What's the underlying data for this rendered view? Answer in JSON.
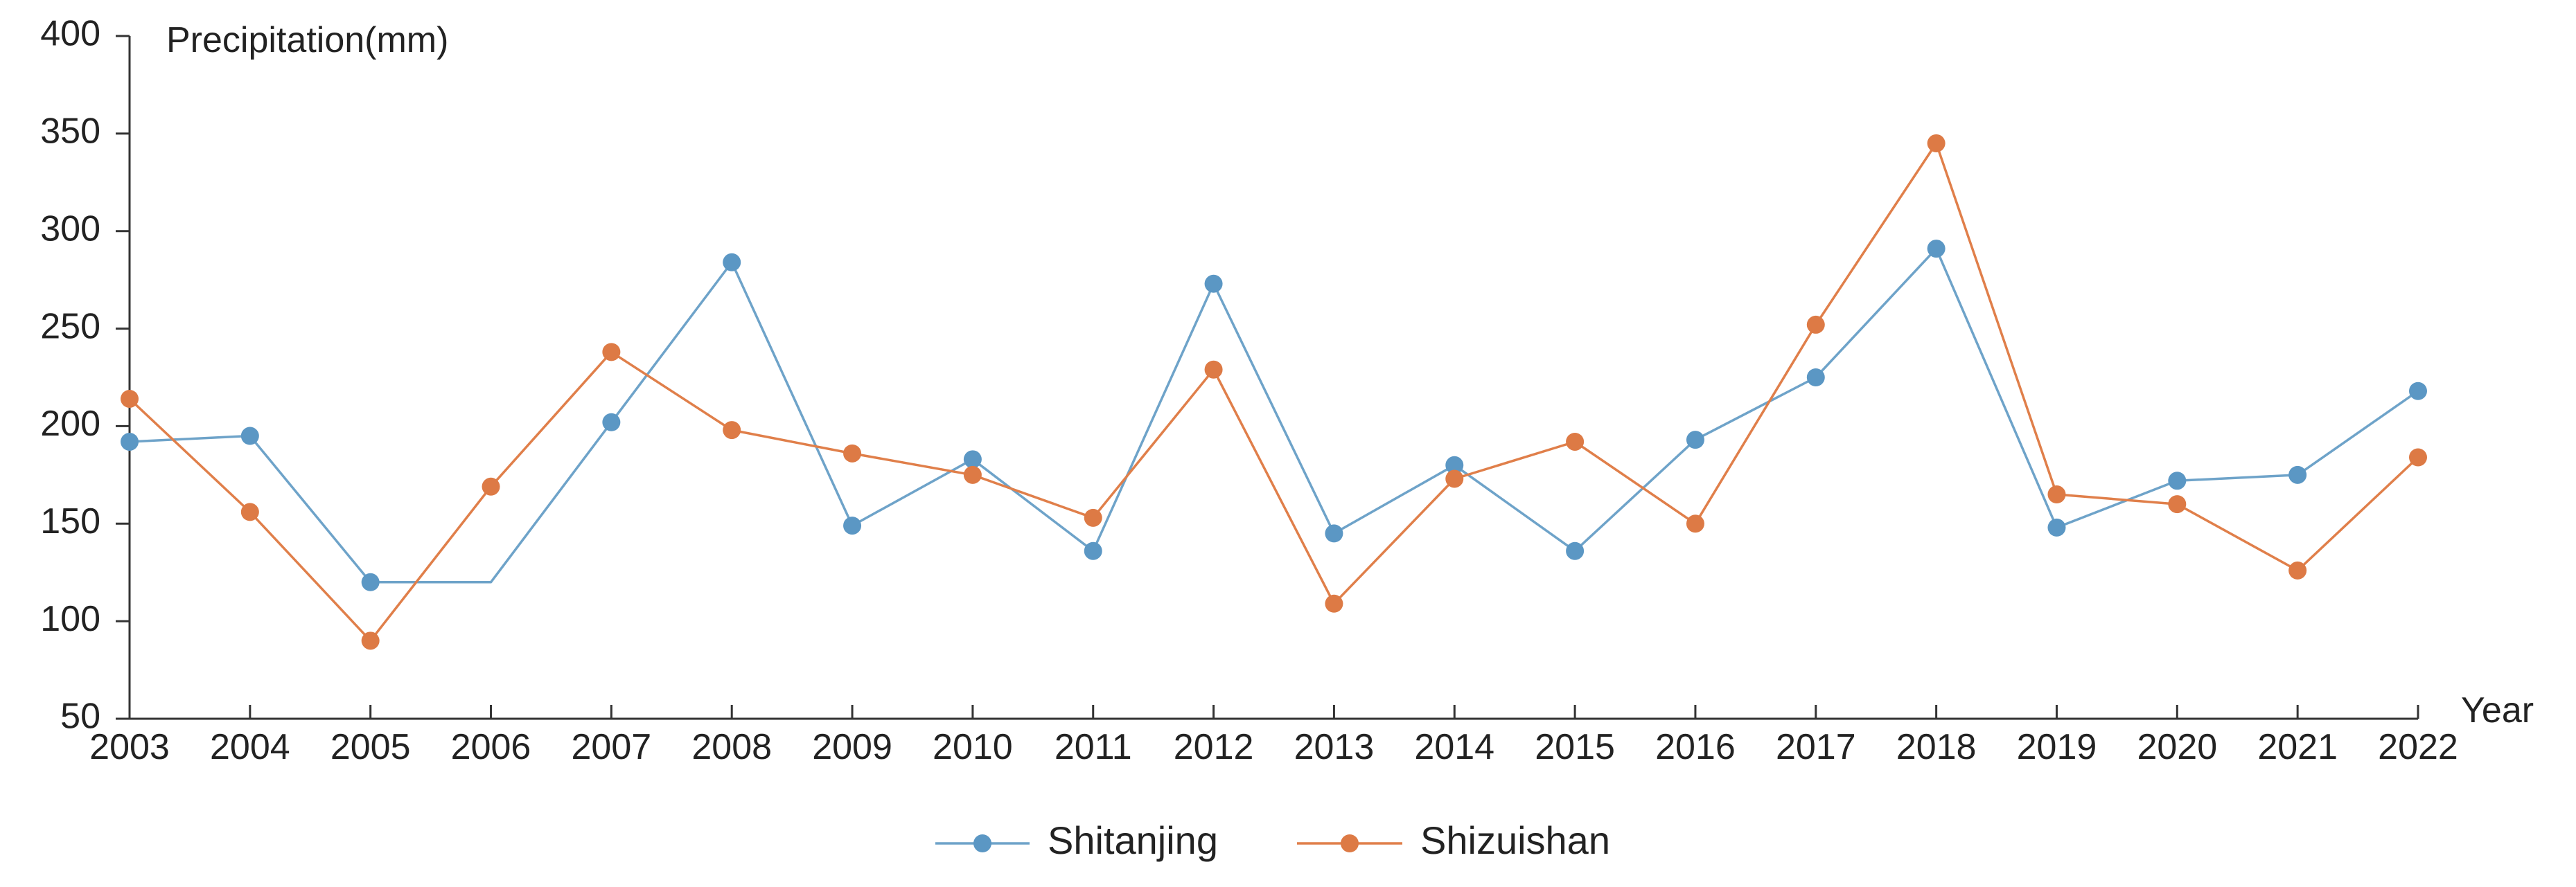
{
  "chart_data": {
    "type": "line",
    "ylabel": "Precipitation(mm)",
    "xlabel": "Year",
    "ylim": [
      50,
      400
    ],
    "yticks": [
      50,
      100,
      150,
      200,
      250,
      300,
      350,
      400
    ],
    "categories": [
      "2003",
      "2004",
      "2005",
      "2006",
      "2007",
      "2008",
      "2009",
      "2010",
      "2011",
      "2012",
      "2013",
      "2014",
      "2015",
      "2016",
      "2017",
      "2018",
      "2019",
      "2020",
      "2021",
      "2022"
    ],
    "series": [
      {
        "name": "Shitanjing",
        "color": "#6ea3c9",
        "marker_color": "#5b97c4",
        "values": [
          192,
          195,
          120,
          120,
          202,
          284,
          149,
          183,
          136,
          273,
          145,
          180,
          136,
          193,
          225,
          291,
          148,
          172,
          175,
          218
        ],
        "markers": [
          true,
          true,
          true,
          false,
          true,
          true,
          true,
          true,
          true,
          true,
          true,
          true,
          true,
          true,
          true,
          true,
          true,
          true,
          true,
          true
        ]
      },
      {
        "name": "Shizuishan",
        "color": "#e07f4a",
        "marker_color": "#dd7a45",
        "values": [
          214,
          156,
          90,
          169,
          238,
          198,
          186,
          175,
          153,
          229,
          109,
          173,
          192,
          150,
          252,
          345,
          165,
          160,
          126,
          184
        ],
        "markers": [
          true,
          true,
          true,
          true,
          true,
          true,
          true,
          true,
          true,
          true,
          true,
          true,
          true,
          true,
          true,
          true,
          true,
          true,
          true,
          true
        ]
      }
    ],
    "grid": false,
    "legend_position": "bottom-center"
  }
}
